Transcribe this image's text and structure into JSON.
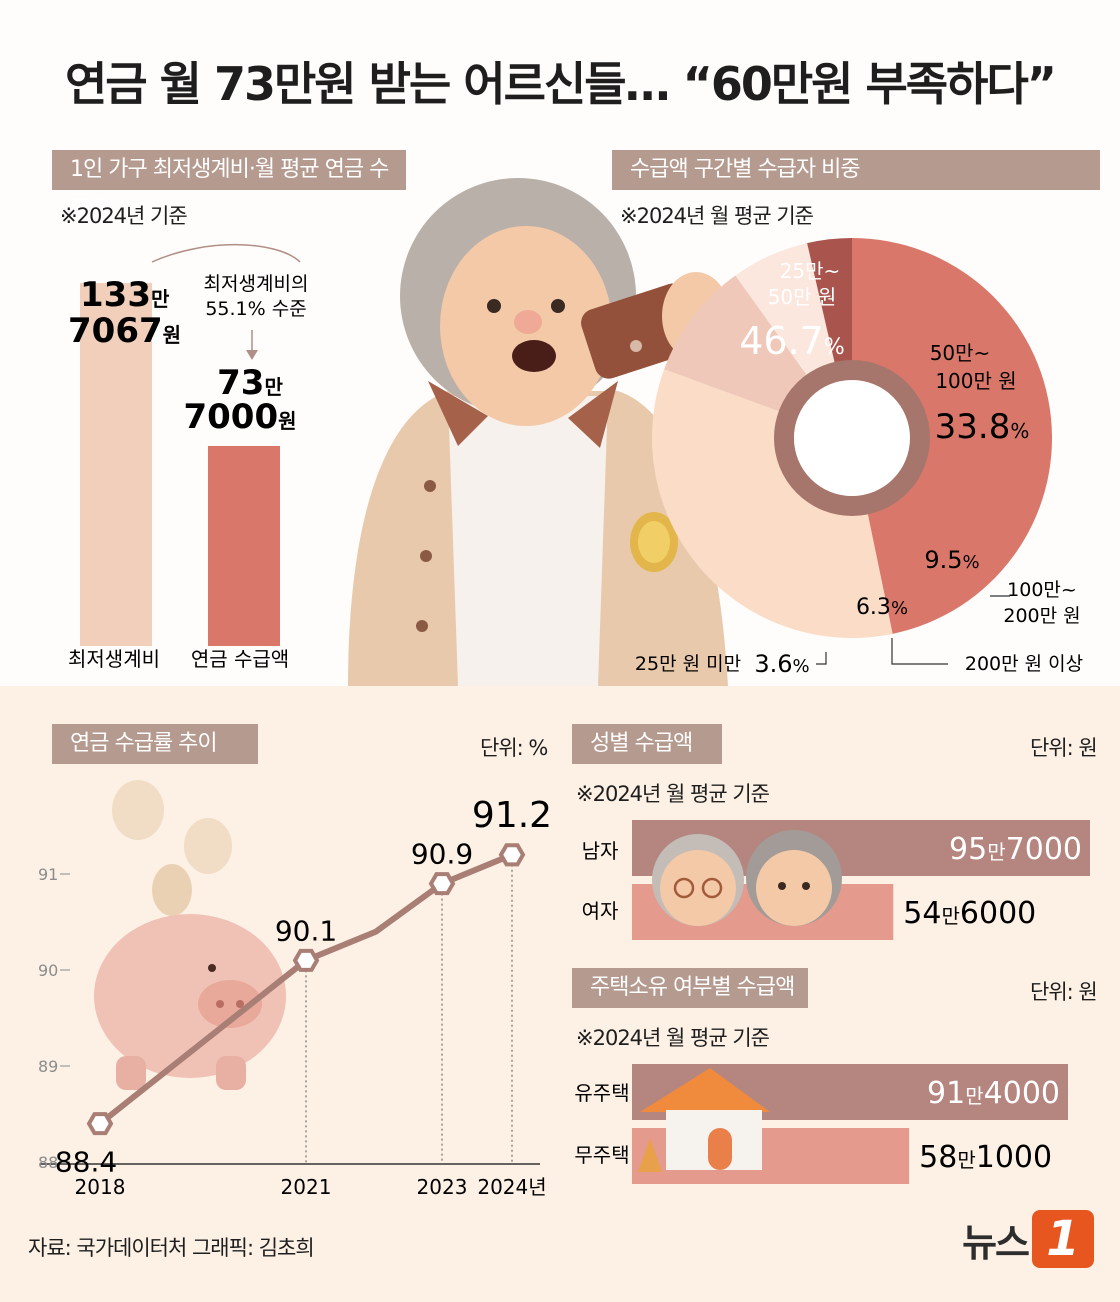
{
  "title": "연금 월 73만원 받는 어르신들… “60만원 부족하다”",
  "colors": {
    "header": "#b59a8f",
    "living_cost": "#f2cfba",
    "pension": "#d9786a",
    "pie_main": "#d9786a",
    "pie_light": "#fbdcc6",
    "pie_mid": "#efc8b9",
    "pie_pale": "#fbe7dd",
    "pie_dark": "#a9554e",
    "line": "#a87e75",
    "male_bar": "#b5867f",
    "female_bar": "#e49a8d"
  },
  "section1": {
    "header": "1인 가구 최저생계비·월 평균 연금 수급액",
    "note": "※2024년 기준",
    "annotation_line1": "최저생계비의",
    "annotation_line2": "55.1% 수준",
    "chart_data": {
      "type": "bar",
      "categories": [
        "최저생계비",
        "연금 수급액"
      ],
      "values": [
        1337067,
        737000
      ],
      "labels": [
        {
          "big1": "133",
          "small1": "만",
          "big2": "7067",
          "small2": "원"
        },
        {
          "big1": "73",
          "small1": "만",
          "big2": "7000",
          "small2": "원"
        }
      ]
    }
  },
  "section2": {
    "header": "수급액 구간별 수급자 비중",
    "note": "※2024년 월 평균 기준",
    "chart_data": {
      "type": "pie",
      "slices": [
        {
          "label_line1": "25만~",
          "label_line2": "50만 원",
          "value": 46.7,
          "color": "#d9786a"
        },
        {
          "label_line1": "50만~",
          "label_line2": "100만 원",
          "value": 33.8,
          "color": "#fbdcc6"
        },
        {
          "label_line1": "100만~",
          "label_line2": "200만 원",
          "value": 9.5,
          "color": "#efc8b9"
        },
        {
          "label_line1": "200만 원 이상",
          "label_line2": "",
          "value": 6.3,
          "color": "#fbe7dd"
        },
        {
          "label_line1": "25만 원 미만",
          "label_line2": "",
          "value": 3.6,
          "color": "#a9554e"
        }
      ]
    }
  },
  "section3": {
    "header": "연금 수급률 추이",
    "unit": "단위: %",
    "chart_data": {
      "type": "line",
      "x": [
        "2018",
        "2021",
        "2023",
        "2024년"
      ],
      "y": [
        88.4,
        90.1,
        90.9,
        91.2
      ],
      "point_labels": [
        "88.4",
        "90.1",
        "90.9",
        "91.2"
      ],
      "yticks": [
        "91",
        "90",
        "89",
        "88"
      ],
      "ylim": [
        88,
        91
      ]
    }
  },
  "section4": {
    "header": "성별 수급액",
    "unit": "단위: 원",
    "note": "※2024년 월 평균 기준",
    "chart_data": {
      "type": "bar",
      "categories": [
        "남자",
        "여자"
      ],
      "values": [
        957000,
        546000
      ],
      "labels": [
        {
          "a": "95",
          "b": "만",
          "c": "7000"
        },
        {
          "a": "54",
          "b": "만",
          "c": "6000"
        }
      ]
    }
  },
  "section5": {
    "header": "주택소유 여부별 수급액",
    "unit": "단위: 원",
    "note": "※2024년 월 평균 기준",
    "chart_data": {
      "type": "bar",
      "categories": [
        "유주택",
        "무주택"
      ],
      "values": [
        914000,
        581000
      ],
      "labels": [
        {
          "a": "91",
          "b": "만",
          "c": "4000"
        },
        {
          "a": "58",
          "b": "만",
          "c": "1000"
        }
      ]
    }
  },
  "footer": {
    "source": "자료: 국가데이터처  그래픽: 김초희",
    "logo_text": "뉴스",
    "logo_badge": "1"
  }
}
